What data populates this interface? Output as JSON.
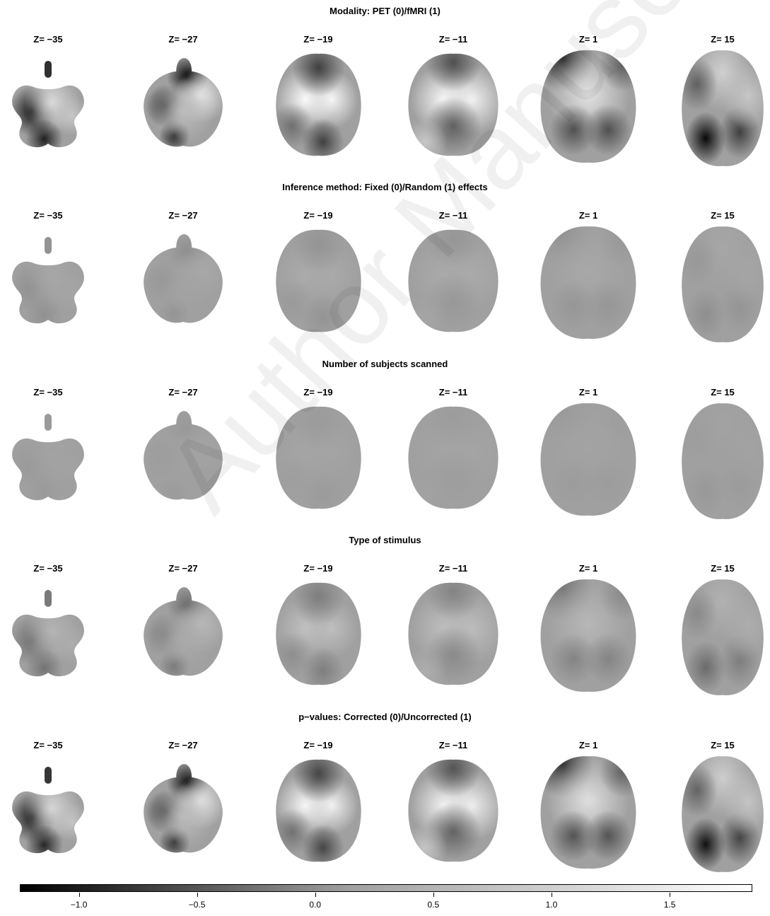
{
  "rows": [
    {
      "title": "Modality: PET (0)/fMRI (1)",
      "contrast": 1.0
    },
    {
      "title": "Inference method: Fixed (0)/Random (1) effects",
      "contrast": 0.12
    },
    {
      "title": "Number of subjects scanned",
      "contrast": 0.05
    },
    {
      "title": "Type of stimulus",
      "contrast": 0.35
    },
    {
      "title": "p−values: Corrected (0)/Uncorrected (1)",
      "contrast": 0.95
    }
  ],
  "slices": [
    "Z= −35",
    "Z= −27",
    "Z= −19",
    "Z= −11",
    "Z= 1",
    "Z= 15"
  ],
  "colorbar": {
    "min": -1.25,
    "max": 1.85,
    "ticks": [
      -1.0,
      -0.5,
      0.0,
      0.5,
      1.0,
      1.5
    ],
    "tick_labels": [
      "−1.0",
      "−0.5",
      "0.0",
      "0.5",
      "1.0",
      "1.5"
    ],
    "low_color": "#000000",
    "high_color": "#ffffff",
    "mid_color": "#a0a0a0"
  },
  "watermark": "Author Manuscript"
}
